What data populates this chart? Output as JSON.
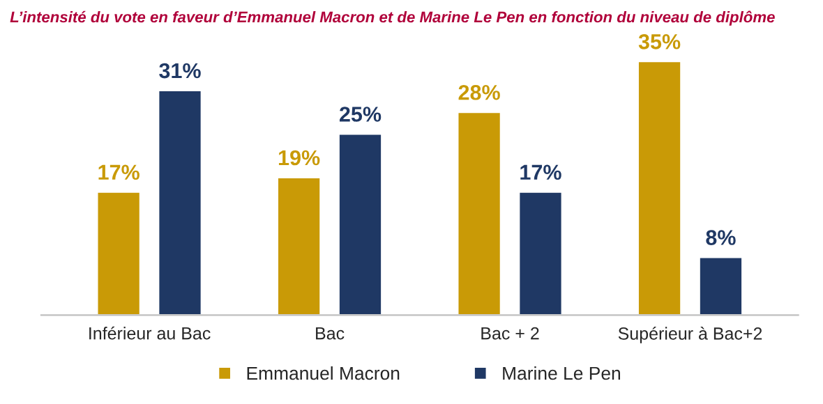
{
  "chart_data": {
    "type": "bar",
    "title": "L’intensité du vote en faveur d’Emmanuel Macron et de Marine Le Pen en fonction du niveau de diplôme",
    "categories": [
      "Inférieur au Bac",
      "Bac",
      "Bac + 2",
      "Supérieur à Bac+2"
    ],
    "series": [
      {
        "name": "Emmanuel Macron",
        "color": "#c99a06",
        "values": [
          17,
          19,
          28,
          35
        ],
        "value_labels": [
          "17%",
          "19%",
          "28%",
          "35%"
        ]
      },
      {
        "name": "Marine Le Pen",
        "color": "#1f3864",
        "values": [
          31,
          25,
          17,
          8
        ],
        "value_labels": [
          "31%",
          "25%",
          "17%",
          "8%"
        ]
      }
    ],
    "legend": "bottom",
    "grid": false
  }
}
